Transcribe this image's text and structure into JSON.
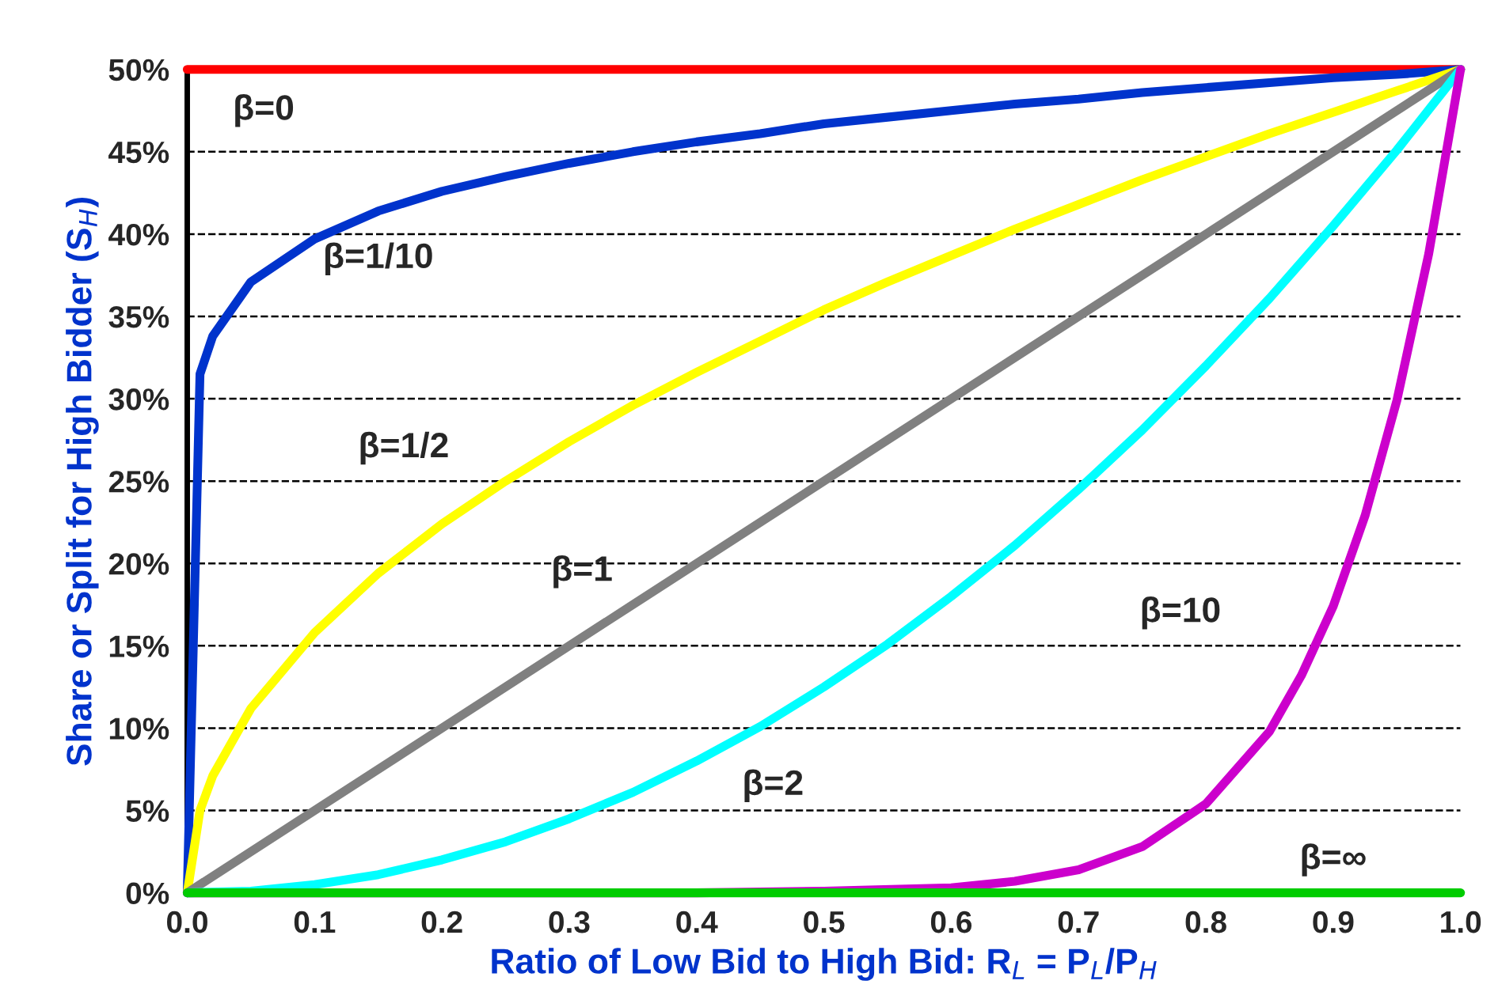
{
  "chart_data": {
    "type": "line",
    "xlabel": "Ratio of Low Bid to High Bid: R$_{L}$ = P$_{L}$/P$_{H}$",
    "ylabel": "Share or Split for High Bidder (S$_{H}$)",
    "xlim": [
      0.0,
      1.0
    ],
    "ylim": [
      0,
      50
    ],
    "xticks": [
      {
        "value": 0,
        "label": "0.0"
      },
      0.1,
      0.2,
      0.3,
      0.4,
      0.5,
      0.6,
      0.7,
      0.8,
      0.9,
      {
        "value": 1,
        "label": "1.0"
      }
    ],
    "yticks": [
      {
        "value": 0,
        "label": "0%"
      },
      {
        "value": 5,
        "label": "5%"
      },
      {
        "value": 10,
        "label": "10%"
      },
      {
        "value": 15,
        "label": "15%"
      },
      {
        "value": 20,
        "label": "20%"
      },
      {
        "value": 25,
        "label": "25%"
      },
      {
        "value": 30,
        "label": "30%"
      },
      {
        "value": 35,
        "label": "35%"
      },
      {
        "value": 40,
        "label": "40%"
      },
      {
        "value": 45,
        "label": "45%"
      },
      {
        "value": 50,
        "label": "50%"
      }
    ],
    "grid": "y",
    "marker": "none",
    "line_style": "solid",
    "series": [
      {
        "name": "β=0",
        "color": "#ff0000",
        "x": [
          0.0,
          1.0
        ],
        "values": [
          50,
          50
        ]
      },
      {
        "name": "β=1/10",
        "color": "#0033cc",
        "x": [
          0.0,
          0.01,
          0.02,
          0.05,
          0.1,
          0.15,
          0.2,
          0.25,
          0.3,
          0.35,
          0.4,
          0.45,
          0.5,
          0.55,
          0.6,
          0.65,
          0.7,
          0.75,
          0.8,
          0.85,
          0.9,
          0.95,
          1.0
        ],
        "values": [
          0,
          31.5,
          33.8,
          37.1,
          39.7,
          41.4,
          42.6,
          43.5,
          44.3,
          45.0,
          45.6,
          46.1,
          46.7,
          47.1,
          47.5,
          47.9,
          48.2,
          48.6,
          48.9,
          49.2,
          49.5,
          49.7,
          50
        ]
      },
      {
        "name": "β=1/2",
        "color": "#ffff00",
        "x": [
          0.0,
          0.01,
          0.02,
          0.05,
          0.1,
          0.15,
          0.2,
          0.25,
          0.3,
          0.35,
          0.4,
          0.45,
          0.5,
          0.55,
          0.6,
          0.65,
          0.7,
          0.75,
          0.8,
          0.85,
          0.9,
          0.95,
          1.0
        ],
        "values": [
          0,
          5,
          7.1,
          11.2,
          15.8,
          19.4,
          22.4,
          25,
          27.4,
          29.6,
          31.6,
          33.5,
          35.4,
          37.1,
          38.7,
          40.3,
          41.8,
          43.3,
          44.7,
          46.1,
          47.4,
          48.7,
          50
        ]
      },
      {
        "name": "β=1",
        "color": "#808080",
        "x": [
          0.0,
          1.0
        ],
        "values": [
          0,
          50
        ]
      },
      {
        "name": "β=2",
        "color": "#00ffff",
        "x": [
          0.0,
          0.05,
          0.1,
          0.15,
          0.2,
          0.25,
          0.3,
          0.35,
          0.4,
          0.45,
          0.5,
          0.55,
          0.6,
          0.65,
          0.7,
          0.75,
          0.8,
          0.85,
          0.9,
          0.95,
          1.0
        ],
        "values": [
          0,
          0.1,
          0.5,
          1.1,
          2,
          3.1,
          4.5,
          6.1,
          8,
          10.1,
          12.5,
          15.1,
          18,
          21.1,
          24.5,
          28.1,
          32,
          36.1,
          40.5,
          45.1,
          50
        ]
      },
      {
        "name": "β=10",
        "color": "#cc00cc",
        "x": [
          0.0,
          0.4,
          0.5,
          0.6,
          0.65,
          0.7,
          0.75,
          0.8,
          0.85,
          0.875,
          0.9,
          0.925,
          0.95,
          0.975,
          1.0
        ],
        "values": [
          0,
          0,
          0.1,
          0.3,
          0.7,
          1.4,
          2.8,
          5.4,
          9.8,
          13.2,
          17.4,
          22.9,
          29.9,
          38.8,
          50
        ]
      },
      {
        "name": "β=∞",
        "color": "#00cc00",
        "x": [
          0.0,
          1.0
        ],
        "values": [
          0,
          0
        ]
      }
    ]
  }
}
